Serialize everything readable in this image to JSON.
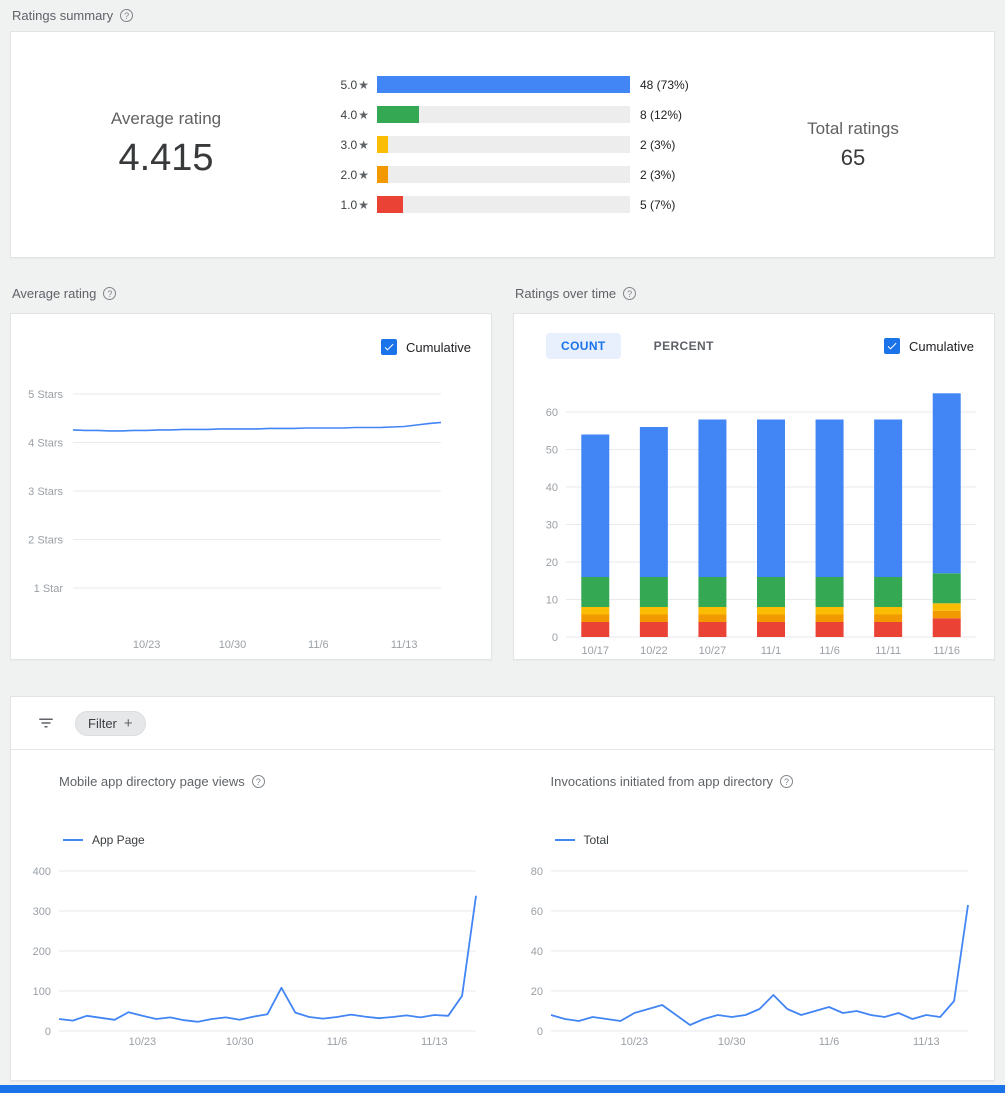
{
  "icons": {
    "help": "?",
    "star": "★"
  },
  "colors": {
    "blue": "#4285f4",
    "green": "#34a853",
    "yellow": "#fbbc04",
    "orange": "#f29900",
    "red": "#ea4335",
    "accent": "#1a73e8",
    "grid": "#e8eaed",
    "track": "#ededee"
  },
  "ratings_summary": {
    "section_title": "Ratings summary",
    "average_rating_label": "Average rating",
    "average_rating_value": "4.415",
    "total_ratings_label": "Total ratings",
    "total_ratings_value": "65",
    "max_count": 48,
    "distribution": [
      {
        "star_label": "5.0",
        "count": 48,
        "value_label": "48 (73%)",
        "color": "#4285f4"
      },
      {
        "star_label": "4.0",
        "count": 8,
        "value_label": "8 (12%)",
        "color": "#34a853"
      },
      {
        "star_label": "3.0",
        "count": 2,
        "value_label": "2 (3%)",
        "color": "#fbbc04"
      },
      {
        "star_label": "2.0",
        "count": 2,
        "value_label": "2 (3%)",
        "color": "#f29900"
      },
      {
        "star_label": "1.0",
        "count": 5,
        "value_label": "5 (7%)",
        "color": "#ea4335"
      }
    ]
  },
  "average_rating_chart": {
    "section_title": "Average rating",
    "cumulative_label": "Cumulative",
    "cumulative_checked": true,
    "chart_data": {
      "type": "line",
      "y_categories": [
        "5 Stars",
        "4 Stars",
        "3 Stars",
        "2 Stars",
        "1 Star"
      ],
      "y_range": [
        1,
        5
      ],
      "x_ticks": [
        "10/23",
        "10/30",
        "11/6",
        "11/13"
      ],
      "x_tick_indices": [
        6,
        13,
        20,
        27
      ],
      "line_color": "#4285f4",
      "values": [
        4.26,
        4.25,
        4.25,
        4.24,
        4.24,
        4.25,
        4.25,
        4.26,
        4.26,
        4.27,
        4.27,
        4.27,
        4.28,
        4.28,
        4.28,
        4.28,
        4.29,
        4.29,
        4.29,
        4.3,
        4.3,
        4.3,
        4.3,
        4.31,
        4.31,
        4.31,
        4.32,
        4.33,
        4.36,
        4.39,
        4.415
      ]
    }
  },
  "ratings_over_time_chart": {
    "section_title": "Ratings over time",
    "tabs": [
      {
        "label": "COUNT",
        "active": true
      },
      {
        "label": "PERCENT",
        "active": false
      }
    ],
    "cumulative_label": "Cumulative",
    "cumulative_checked": true,
    "chart_data": {
      "type": "stacked_bar",
      "categories": [
        "10/17",
        "10/22",
        "10/27",
        "11/1",
        "11/6",
        "11/11",
        "11/16"
      ],
      "y_ticks": [
        0,
        10,
        20,
        30,
        40,
        50,
        60
      ],
      "series": [
        {
          "name": "1 star",
          "color": "#ea4335",
          "values": [
            4,
            4,
            4,
            4,
            4,
            4,
            5
          ]
        },
        {
          "name": "2 stars",
          "color": "#f29900",
          "values": [
            2,
            2,
            2,
            2,
            2,
            2,
            2
          ]
        },
        {
          "name": "3 stars",
          "color": "#fbbc04",
          "values": [
            2,
            2,
            2,
            2,
            2,
            2,
            2
          ]
        },
        {
          "name": "4 stars",
          "color": "#34a853",
          "values": [
            8,
            8,
            8,
            8,
            8,
            8,
            8
          ]
        },
        {
          "name": "5 stars",
          "color": "#4285f4",
          "values": [
            38,
            40,
            42,
            42,
            42,
            42,
            48
          ]
        }
      ]
    }
  },
  "filter": {
    "label": "Filter",
    "add_icon": "+"
  },
  "page_views_chart": {
    "title": "Mobile app directory page views",
    "legend": "App Page",
    "chart_data": {
      "type": "line",
      "y_ticks": [
        0,
        100,
        200,
        300,
        400
      ],
      "x_ticks": [
        "10/23",
        "10/30",
        "11/6",
        "11/13"
      ],
      "x_tick_indices": [
        6,
        13,
        20,
        27
      ],
      "line_color": "#4285f4",
      "values": [
        30,
        26,
        38,
        33,
        28,
        47,
        38,
        30,
        34,
        27,
        23,
        30,
        34,
        28,
        36,
        42,
        108,
        46,
        35,
        31,
        35,
        41,
        36,
        32,
        35,
        39,
        34,
        40,
        38,
        88,
        338
      ]
    }
  },
  "invocations_chart": {
    "title": "Invocations initiated from app directory",
    "legend": "Total",
    "chart_data": {
      "type": "line",
      "y_ticks": [
        0,
        20,
        40,
        60,
        80
      ],
      "x_ticks": [
        "10/23",
        "10/30",
        "11/6",
        "11/13"
      ],
      "x_tick_indices": [
        6,
        13,
        20,
        27
      ],
      "line_color": "#4285f4",
      "values": [
        8,
        6,
        5,
        7,
        6,
        5,
        9,
        11,
        13,
        8,
        3,
        6,
        8,
        7,
        8,
        11,
        18,
        11,
        8,
        10,
        12,
        9,
        10,
        8,
        7,
        9,
        6,
        8,
        7,
        15,
        63
      ]
    }
  }
}
